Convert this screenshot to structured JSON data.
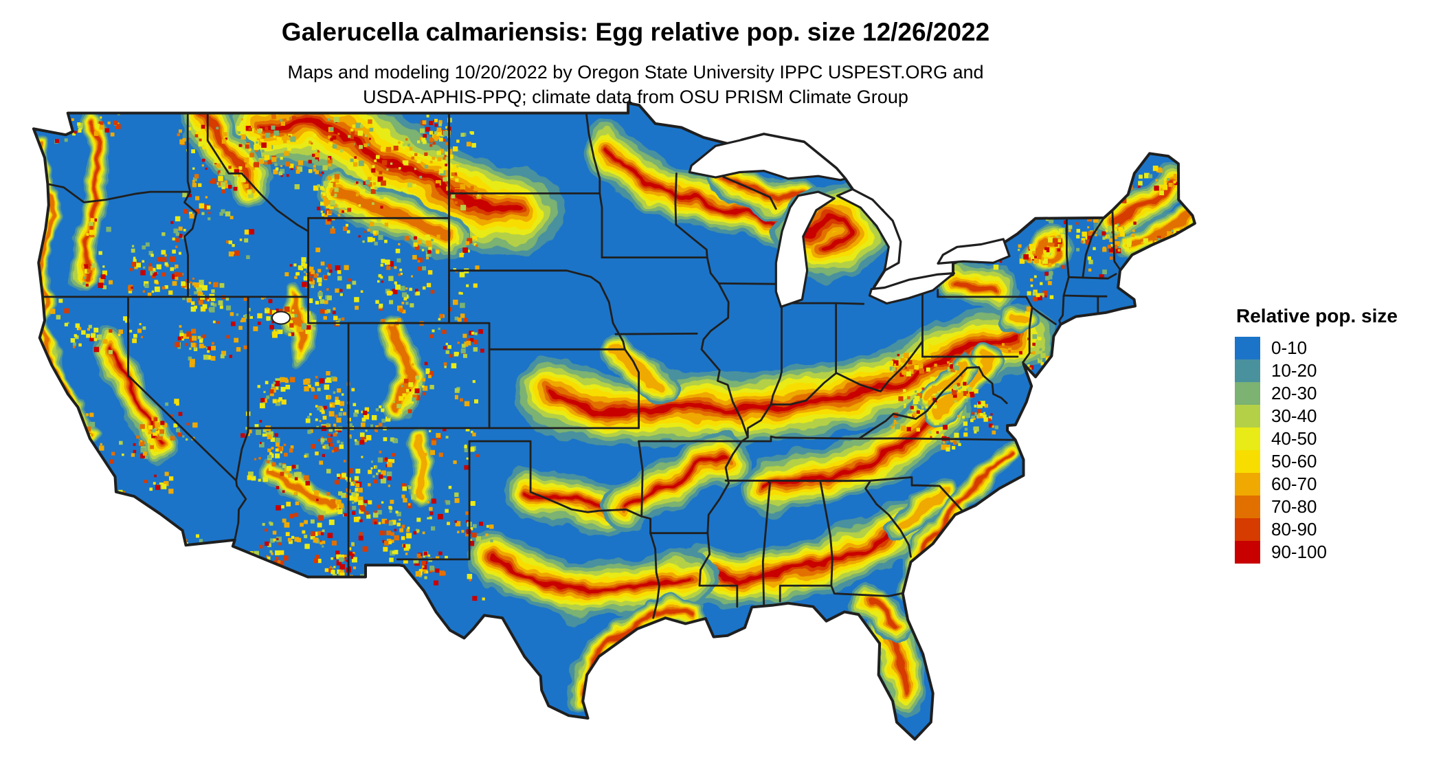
{
  "title": "Galerucella calmariensis: Egg relative pop. size 12/26/2022",
  "subtitle": {
    "line1": "Maps and modeling 10/20/2022 by Oregon State University IPPC USPEST.ORG and",
    "line2": "USDA-APHIS-PPQ; climate data from OSU PRISM Climate Group"
  },
  "legend": {
    "title": "Relative pop. size",
    "items": [
      {
        "label": "0-10",
        "color": "#1B74C8"
      },
      {
        "label": "10-20",
        "color": "#4A919E"
      },
      {
        "label": "20-30",
        "color": "#7CB272"
      },
      {
        "label": "30-40",
        "color": "#B4D046"
      },
      {
        "label": "40-50",
        "color": "#E9EB16"
      },
      {
        "label": "50-60",
        "color": "#F8DE00"
      },
      {
        "label": "60-70",
        "color": "#EFA900"
      },
      {
        "label": "70-80",
        "color": "#E27000"
      },
      {
        "label": "80-90",
        "color": "#D63B00"
      },
      {
        "label": "90-100",
        "color": "#C80000"
      }
    ]
  },
  "map": {
    "base_fill_color": "#1B74C8",
    "border_color": "#1f1f1f",
    "water_color": "#ffffff"
  }
}
